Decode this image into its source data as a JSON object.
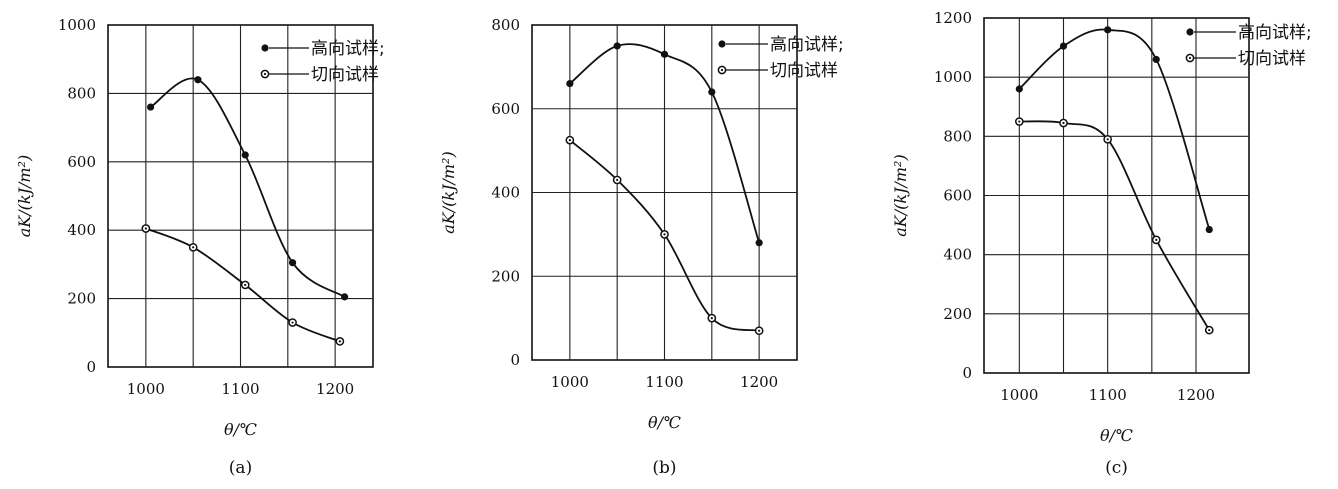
{
  "chart_data": [
    {
      "type": "line",
      "caption": "(a)",
      "xlabel": "θ/℃",
      "ylabel": "aK/(kJ/m²)",
      "xlim": [
        960,
        1240
      ],
      "ylim": [
        0,
        1000
      ],
      "x_ticks": [
        1000,
        1100,
        1200
      ],
      "y_ticks": [
        0,
        200,
        400,
        600,
        800,
        1000
      ],
      "x_grid": [
        1000,
        1050,
        1100,
        1150,
        1200
      ],
      "grid": true,
      "legend_position": "top-right",
      "series": [
        {
          "name": "高向试样;",
          "marker": "filled",
          "x": [
            1005,
            1055,
            1105,
            1155,
            1210
          ],
          "values": [
            760,
            840,
            620,
            305,
            205
          ]
        },
        {
          "name": "切向试样",
          "marker": "open",
          "x": [
            1000,
            1050,
            1105,
            1155,
            1205
          ],
          "values": [
            405,
            350,
            240,
            130,
            75
          ]
        }
      ]
    },
    {
      "type": "line",
      "caption": "(b)",
      "xlabel": "θ/℃",
      "ylabel": "aK/(kJ/m²)",
      "xlim": [
        960,
        1240
      ],
      "ylim": [
        0,
        800
      ],
      "x_ticks": [
        1000,
        1100,
        1200
      ],
      "y_ticks": [
        0,
        200,
        400,
        600,
        800
      ],
      "x_grid": [
        1000,
        1050,
        1100,
        1150,
        1200
      ],
      "grid": true,
      "legend_position": "top-right",
      "series": [
        {
          "name": "高向试样;",
          "marker": "filled",
          "x": [
            1000,
            1050,
            1100,
            1150,
            1200
          ],
          "values": [
            660,
            750,
            730,
            640,
            280
          ]
        },
        {
          "name": "切向试样",
          "marker": "open",
          "x": [
            1000,
            1050,
            1100,
            1150,
            1200
          ],
          "values": [
            525,
            430,
            300,
            100,
            70
          ]
        }
      ]
    },
    {
      "type": "line",
      "caption": "(c)",
      "xlabel": "θ/℃",
      "ylabel": "aK/(kJ/m²)",
      "xlim": [
        960,
        1260
      ],
      "ylim": [
        0,
        1200
      ],
      "x_ticks": [
        1000,
        1100,
        1200
      ],
      "y_ticks": [
        0,
        200,
        400,
        600,
        800,
        1000,
        1200
      ],
      "x_grid": [
        1000,
        1050,
        1100,
        1150,
        1200
      ],
      "grid": true,
      "legend_position": "top-right",
      "series": [
        {
          "name": "高向试样;",
          "marker": "filled",
          "x": [
            1000,
            1050,
            1100,
            1155,
            1215
          ],
          "values": [
            960,
            1105,
            1160,
            1060,
            485
          ]
        },
        {
          "name": "切向试样",
          "marker": "open",
          "x": [
            1000,
            1050,
            1100,
            1155,
            1215
          ],
          "values": [
            850,
            845,
            790,
            450,
            145
          ]
        }
      ]
    }
  ]
}
